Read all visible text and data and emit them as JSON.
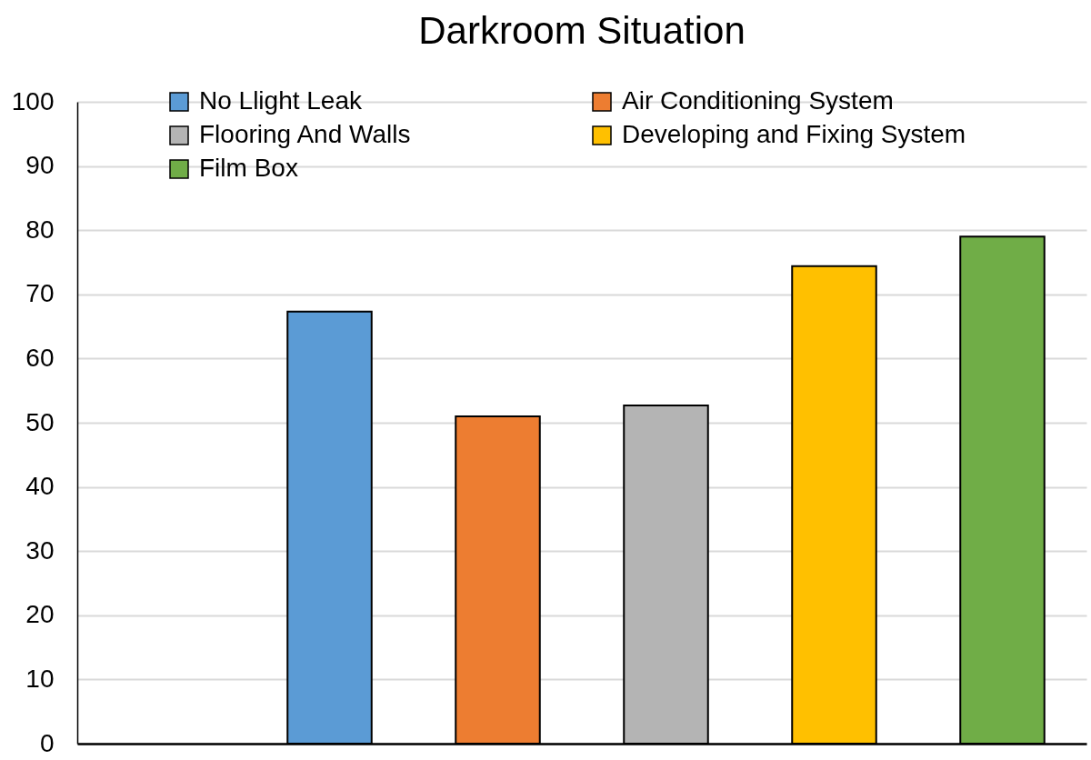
{
  "chart_data": {
    "type": "bar",
    "title": "Darkroom Situation",
    "categories": [
      null,
      null,
      null,
      null,
      null,
      null
    ],
    "series": [
      {
        "name": "No Llight Leak",
        "color": "#5b9bd5",
        "values": [
          null,
          67.3,
          null,
          null,
          null,
          null
        ]
      },
      {
        "name": "Air Conditioning System",
        "color": "#ed7d31",
        "values": [
          null,
          null,
          51,
          null,
          null,
          null
        ]
      },
      {
        "name": "Flooring And Walls",
        "color": "#b4b4b4",
        "values": [
          null,
          null,
          null,
          52.7,
          null,
          null
        ]
      },
      {
        "name": "Developing and Fixing System",
        "color": "#ffc000",
        "values": [
          null,
          null,
          null,
          null,
          74.4,
          null
        ]
      },
      {
        "name": "Film Box",
        "color": "#70ad47",
        "values": [
          null,
          null,
          null,
          null,
          null,
          79
        ]
      }
    ],
    "ylim": [
      0,
      100
    ],
    "yticks": [
      0,
      10,
      20,
      30,
      40,
      50,
      60,
      70,
      80,
      90,
      100
    ],
    "grid": "y",
    "legend": "top left"
  }
}
